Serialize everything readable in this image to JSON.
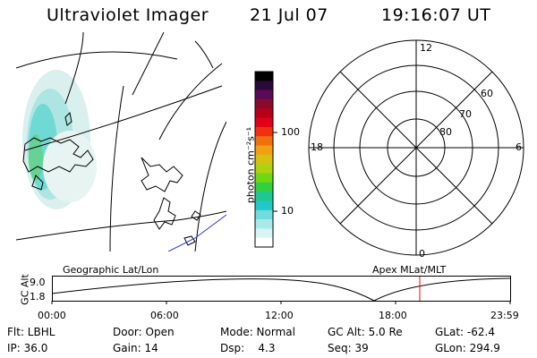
{
  "header": {
    "title": "Ultraviolet Imager",
    "date": "21 Jul 07",
    "time": "19:16:07 UT"
  },
  "map": {
    "label": "Geographic Lat/Lon"
  },
  "colorbar": {
    "unit_label": "photon cm⁻²s⁻¹",
    "ticks": [
      "100",
      "10"
    ],
    "colors": [
      "#000000",
      "#2b0a3a",
      "#5a0a5a",
      "#8a0a2a",
      "#b8001a",
      "#e0001a",
      "#f03010",
      "#f07010",
      "#f0a010",
      "#d8c010",
      "#b0d010",
      "#70d810",
      "#30d040",
      "#20c890",
      "#20c8c8",
      "#70dcdc",
      "#a8eaea",
      "#d8f4f4",
      "#ffffff"
    ]
  },
  "polar": {
    "label": "Apex MLat/MLT",
    "mlt_labels": {
      "top": "12",
      "left": "18",
      "right": "6",
      "bottom": "0"
    },
    "lat_labels": [
      "60",
      "70",
      "80"
    ]
  },
  "altitude_plot": {
    "ylabel": "GC Alt",
    "ytick_top": "9.0",
    "ytick_bottom": "1.8",
    "xticks": [
      "00:00",
      "06:00",
      "12:00",
      "18:00",
      "23:59"
    ],
    "current_time_marker_color": "#ff0000"
  },
  "status": {
    "flt": "Flt: LBHL",
    "door": "Door: Open",
    "mode": "Mode: Normal",
    "gc_alt": "GC Alt: 5.0 Re",
    "glat": "GLat: -62.4",
    "ip": "IP: 36.0",
    "gain": "Gain: 14",
    "dsp": "Dsp:    4.3",
    "seq": "Seq: 39",
    "glon": "GLon: 294.9"
  }
}
